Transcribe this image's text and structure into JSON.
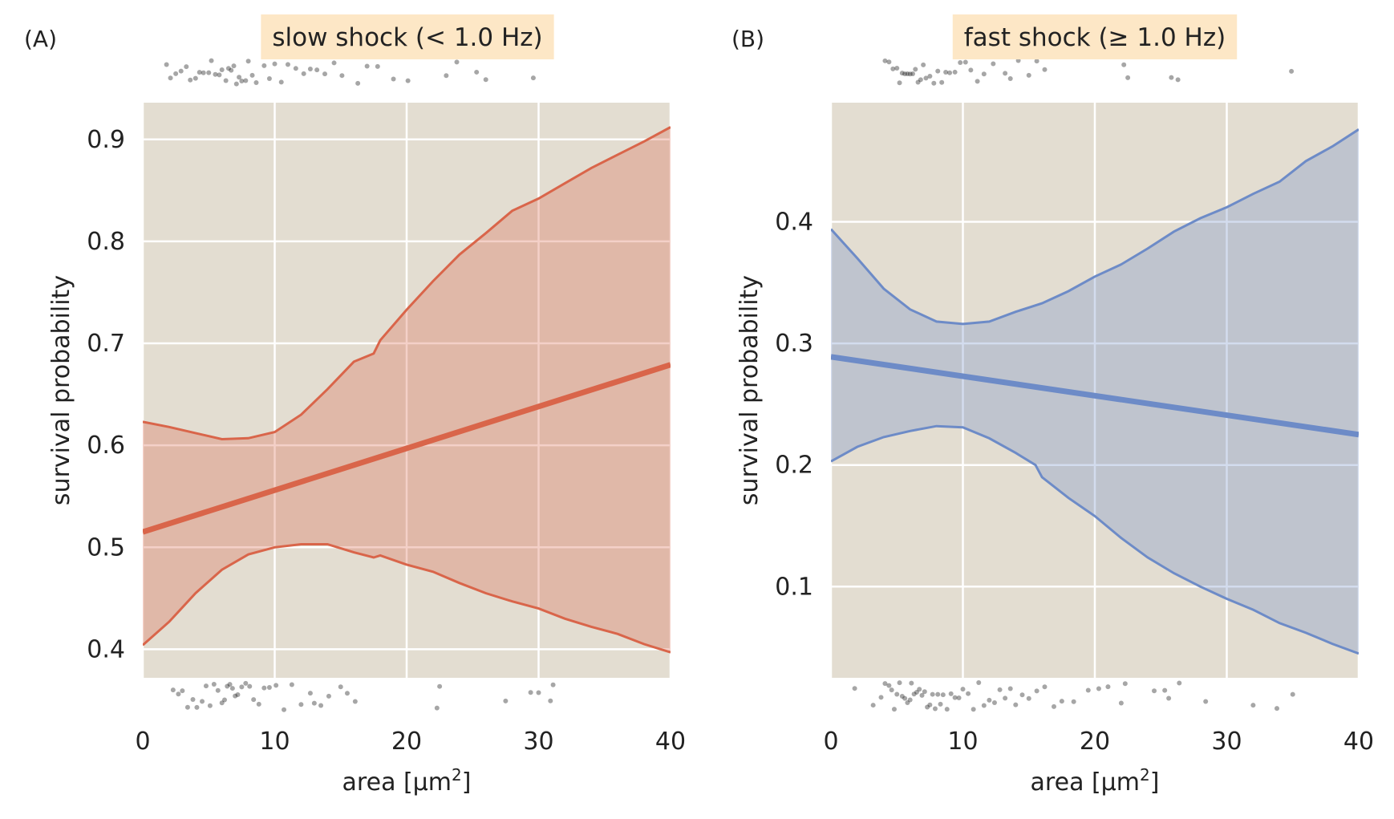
{
  "chart_data": [
    {
      "type": "line",
      "panel_label": "(A)",
      "title": "slow shock (< 1.0 Hz)",
      "xlabel": "area [μm",
      "xlabel_sup": "2",
      "xlabel_suffix": "]",
      "ylabel": "survival probability",
      "xlim": [
        0,
        40
      ],
      "ylim": [
        0.372,
        0.936
      ],
      "xticks": [
        0,
        10,
        20,
        30,
        40
      ],
      "yticks": [
        0.4,
        0.5,
        0.6,
        0.7,
        0.8,
        0.9
      ],
      "ytick_labels": [
        "0.4",
        "0.5",
        "0.6",
        "0.7",
        "0.8",
        "0.9"
      ],
      "grid": true,
      "colors": {
        "line": "#d9654a",
        "band": "#e8b7a5",
        "panel": "#e3ddd1",
        "grid": "#ffffff",
        "rug": "#000000"
      },
      "series": [
        {
          "role": "fit",
          "x": [
            0,
            40
          ],
          "y": [
            0.515,
            0.679
          ]
        },
        {
          "role": "ci_upper",
          "x": [
            0,
            2,
            4,
            6,
            8,
            10,
            12,
            14,
            16,
            17.5,
            18,
            20,
            22,
            24,
            26,
            28,
            30,
            32,
            34,
            36,
            38,
            40
          ],
          "y": [
            0.623,
            0.618,
            0.612,
            0.606,
            0.607,
            0.613,
            0.63,
            0.655,
            0.682,
            0.69,
            0.703,
            0.733,
            0.761,
            0.787,
            0.808,
            0.83,
            0.842,
            0.857,
            0.872,
            0.885,
            0.898,
            0.912
          ]
        },
        {
          "role": "ci_lower",
          "x": [
            0,
            2,
            4,
            6,
            8,
            10,
            12,
            14,
            16,
            17.5,
            18,
            20,
            22,
            24,
            26,
            28,
            30,
            32,
            34,
            36,
            38,
            40
          ],
          "y": [
            0.404,
            0.427,
            0.455,
            0.478,
            0.493,
            0.5,
            0.503,
            0.503,
            0.495,
            0.49,
            0.492,
            0.483,
            0.476,
            0.465,
            0.455,
            0.447,
            0.44,
            0.43,
            0.422,
            0.415,
            0.405,
            0.397
          ]
        }
      ],
      "rug_top": [
        1.8,
        2.1,
        2.5,
        2.9,
        3.3,
        3.6,
        4.0,
        4.3,
        4.6,
        5.0,
        5.2,
        5.5,
        5.8,
        6.0,
        6.3,
        6.5,
        6.7,
        6.9,
        7.1,
        7.3,
        7.5,
        7.8,
        8.0,
        8.3,
        8.6,
        9.2,
        9.6,
        10.0,
        10.5,
        11.0,
        11.6,
        12.2,
        12.7,
        13.2,
        13.8,
        14.5,
        15.1,
        16.3,
        17.0,
        17.8,
        19.0,
        20.1,
        23.0,
        23.8,
        25.3,
        26.0,
        29.6
      ],
      "rug_bottom": [
        2.3,
        2.7,
        3.0,
        3.4,
        3.8,
        4.1,
        4.5,
        4.8,
        5.1,
        5.4,
        5.7,
        6.0,
        6.2,
        6.4,
        6.6,
        6.8,
        7.0,
        7.2,
        7.5,
        7.8,
        8.1,
        8.4,
        8.8,
        9.2,
        9.6,
        10.1,
        10.7,
        11.3,
        12.0,
        12.7,
        13.0,
        13.5,
        14.1,
        15.0,
        15.5,
        16.1,
        22.3,
        22.5,
        27.5,
        29.4,
        30.0,
        30.9,
        31.1
      ]
    },
    {
      "type": "line",
      "panel_label": "(B)",
      "title": "fast shock (≥ 1.0 Hz)",
      "xlabel": "area [μm",
      "xlabel_sup": "2",
      "xlabel_suffix": "]",
      "ylabel": "survival probability",
      "xlim": [
        0,
        40
      ],
      "ylim": [
        0.025,
        0.498
      ],
      "xticks": [
        0,
        10,
        20,
        30,
        40
      ],
      "yticks": [
        0.1,
        0.2,
        0.3,
        0.4
      ],
      "ytick_labels": [
        "0.1",
        "0.2",
        "0.3",
        "0.4"
      ],
      "grid": true,
      "colors": {
        "line": "#6d8bc7",
        "band": "#c4cbd8",
        "panel": "#e3ddd1",
        "grid": "#ffffff",
        "rug": "#000000"
      },
      "series": [
        {
          "role": "fit",
          "x": [
            0,
            40
          ],
          "y": [
            0.289,
            0.225
          ]
        },
        {
          "role": "ci_upper",
          "x": [
            0,
            2,
            4,
            6,
            8,
            10,
            12,
            14,
            16,
            18,
            20,
            22,
            24,
            26,
            28,
            30,
            32,
            34,
            36,
            38,
            40
          ],
          "y": [
            0.394,
            0.37,
            0.345,
            0.328,
            0.318,
            0.316,
            0.318,
            0.326,
            0.333,
            0.343,
            0.355,
            0.365,
            0.378,
            0.392,
            0.403,
            0.412,
            0.423,
            0.433,
            0.45,
            0.462,
            0.476
          ]
        },
        {
          "role": "ci_lower",
          "x": [
            0,
            2,
            4,
            6,
            8,
            10,
            12,
            14,
            15.5,
            16,
            18,
            20,
            22,
            24,
            26,
            28,
            30,
            32,
            34,
            36,
            38,
            40
          ],
          "y": [
            0.203,
            0.215,
            0.223,
            0.228,
            0.232,
            0.231,
            0.222,
            0.21,
            0.2,
            0.19,
            0.173,
            0.158,
            0.14,
            0.124,
            0.111,
            0.1,
            0.09,
            0.081,
            0.07,
            0.062,
            0.053,
            0.045
          ]
        }
      ],
      "rug_top": [
        4.1,
        4.4,
        4.7,
        5.0,
        5.2,
        5.4,
        5.6,
        5.8,
        6.0,
        6.2,
        6.4,
        6.6,
        6.8,
        7.0,
        7.2,
        7.5,
        7.8,
        8.1,
        8.4,
        8.7,
        9.0,
        9.4,
        9.8,
        10.2,
        10.6,
        11.1,
        11.6,
        12.3,
        13.2,
        13.6,
        14.2,
        15.0,
        15.6,
        16.2,
        22.2,
        22.5,
        25.8,
        26.3,
        34.9
      ],
      "rug_bottom": [
        1.8,
        3.2,
        3.8,
        4.1,
        4.4,
        4.6,
        4.8,
        5.0,
        5.2,
        5.4,
        5.6,
        5.8,
        6.0,
        6.1,
        6.3,
        6.5,
        6.7,
        6.9,
        7.1,
        7.3,
        7.5,
        7.7,
        7.9,
        8.1,
        8.3,
        8.5,
        8.8,
        9.1,
        9.4,
        9.7,
        10.0,
        10.4,
        10.8,
        11.2,
        11.6,
        12.0,
        12.4,
        12.8,
        13.2,
        13.6,
        14.0,
        14.5,
        15.0,
        15.6,
        16.2,
        16.9,
        17.5,
        18.4,
        19.5,
        20.3,
        21.0,
        22.0,
        22.3,
        24.5,
        25.3,
        25.6,
        26.4,
        28.4,
        32.0,
        33.8,
        35.0
      ]
    }
  ]
}
